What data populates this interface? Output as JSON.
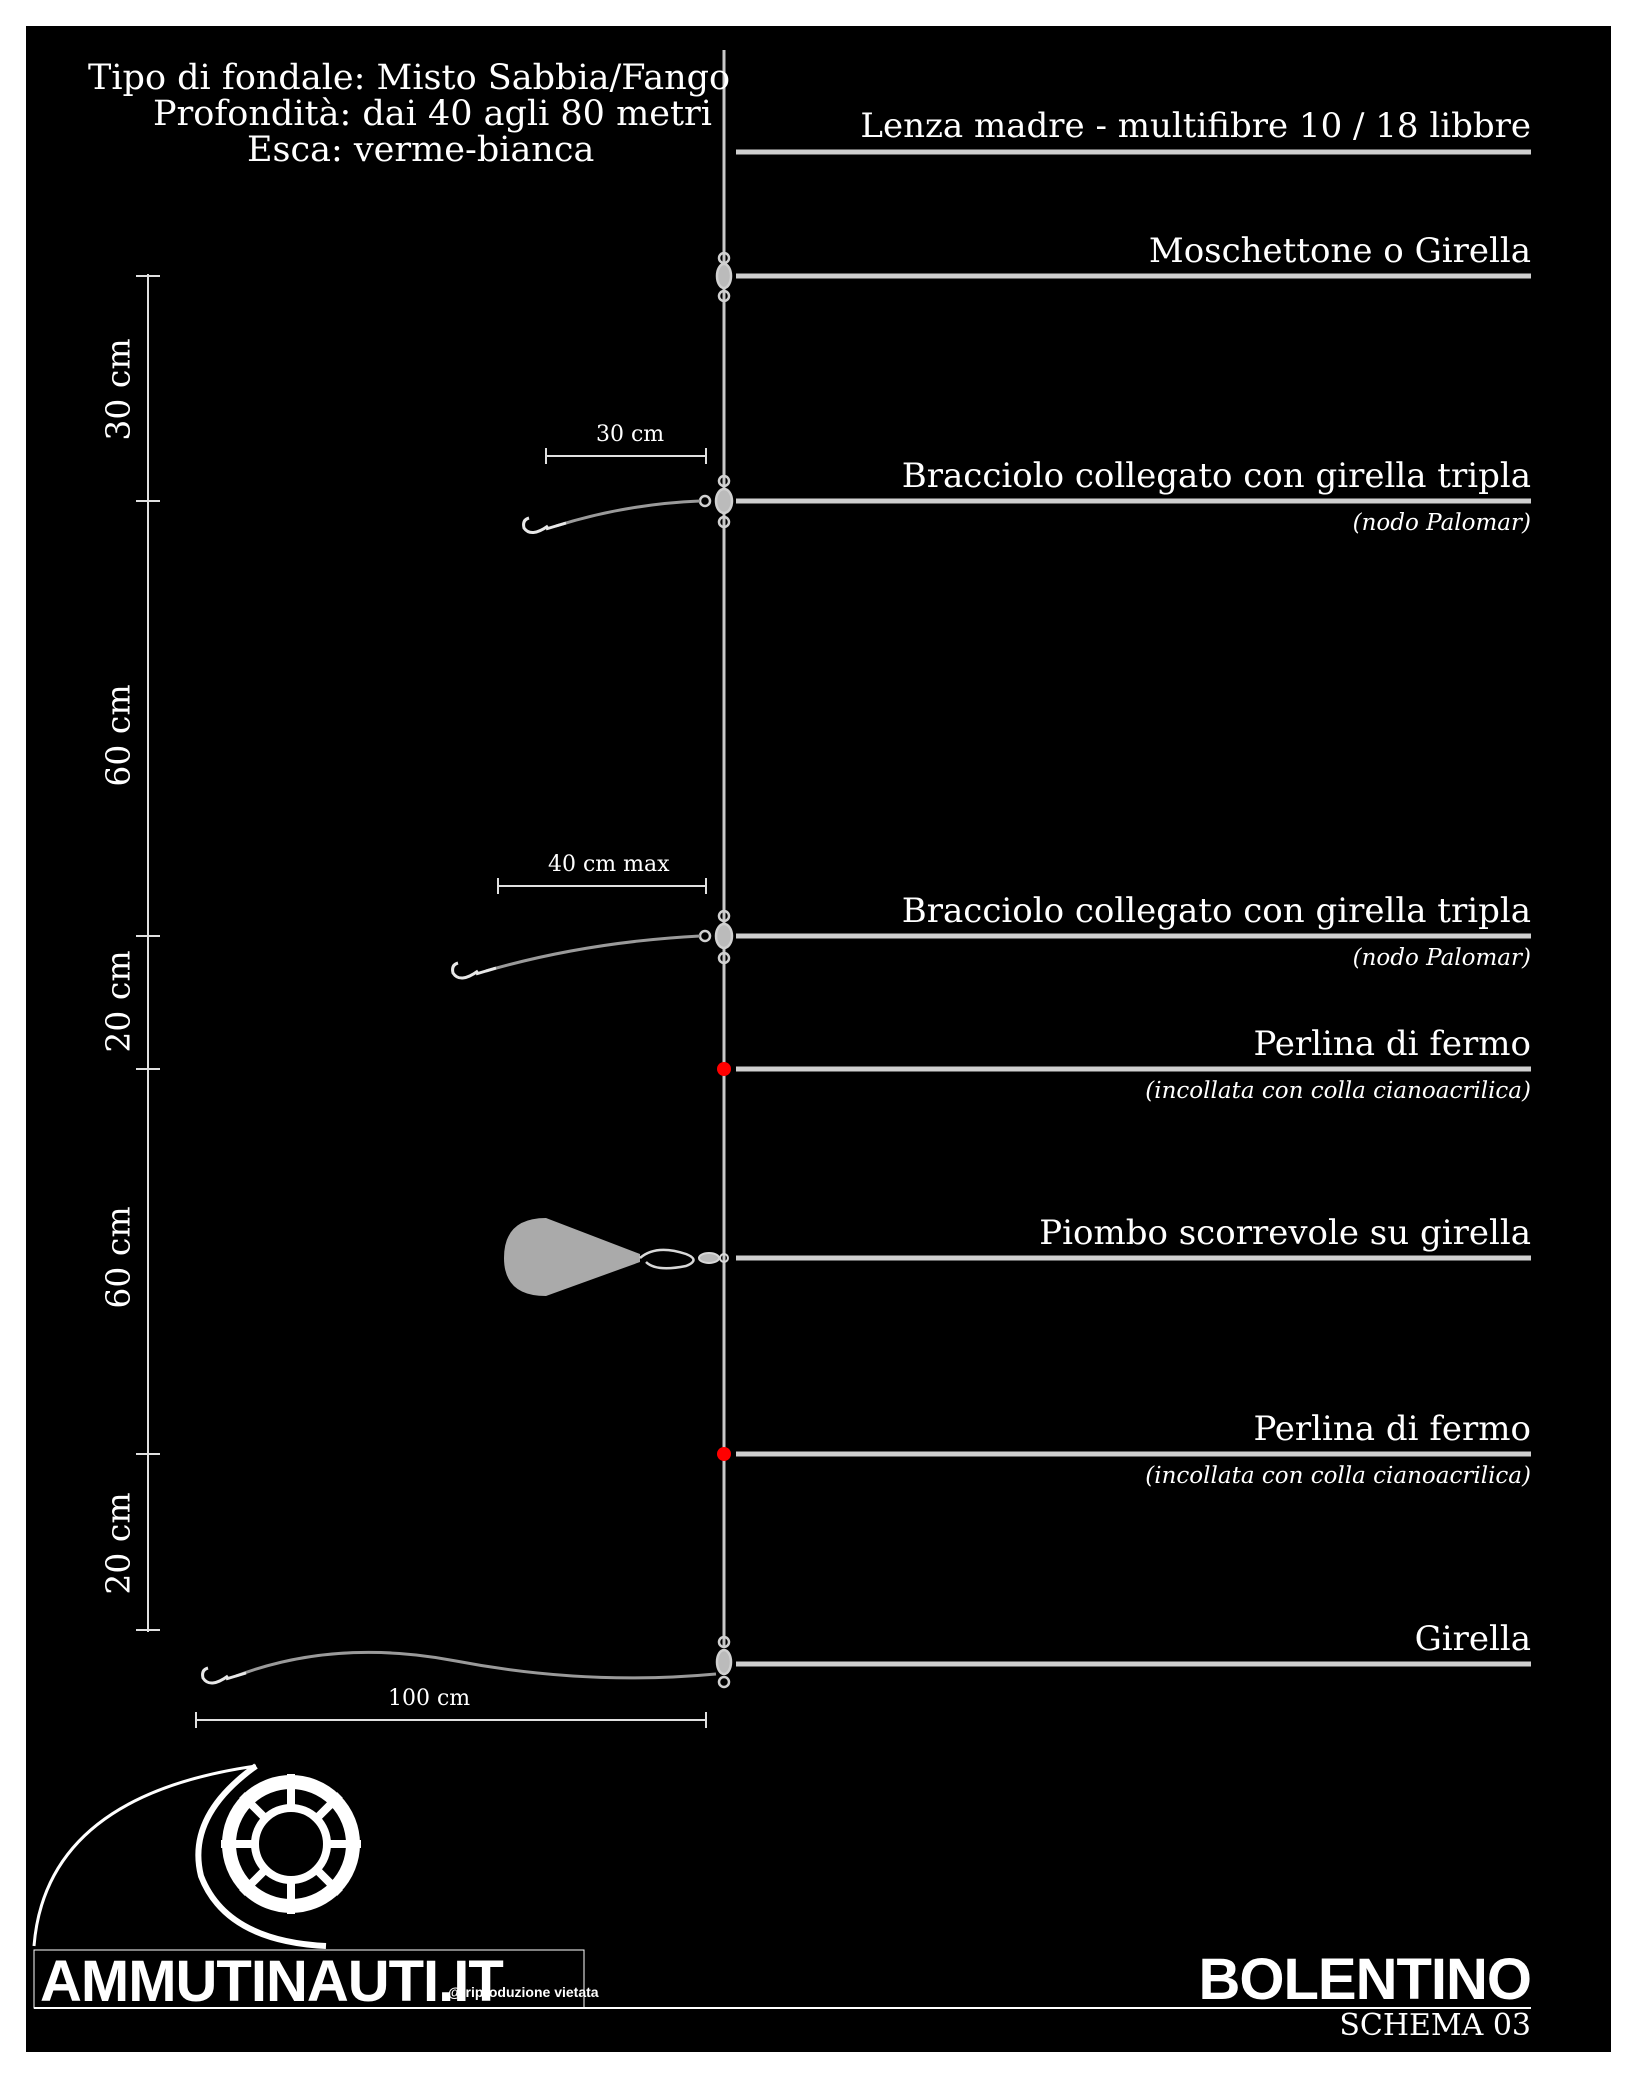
{
  "header": {
    "fondale": "Tipo di fondale: Misto Sabbia/Fango",
    "profondita": "Profondità: dai 40 agli 80 metri",
    "esca": "Esca: verme-bianca"
  },
  "labels": {
    "lenza_madre": "Lenza madre - multifibre 10 / 18 libbre",
    "moschettone": "Moschettone o Girella",
    "bracciolo_1": "Bracciolo collegato con girella tripla",
    "bracciolo_1_note": "(nodo Palomar)",
    "bracciolo_2": "Bracciolo collegato con girella tripla",
    "bracciolo_2_note": "(nodo Palomar)",
    "perlina_1": "Perlina di fermo",
    "perlina_1_note": "(incollata con colla cianoacrilica)",
    "piombo": "Piombo scorrevole su girella",
    "perlina_2": "Perlina di fermo",
    "perlina_2_note": "(incollata con colla cianoacrilica)",
    "girella": "Girella"
  },
  "dimensions": {
    "vertical": [
      "30 cm",
      "60 cm",
      "20 cm",
      "60 cm",
      "20 cm"
    ],
    "bracciolo_1_length": "30 cm",
    "bracciolo_2_length": "40 cm max",
    "terminale_length": "100 cm"
  },
  "footer": {
    "brand": "AMMUTINAUTI.IT",
    "copyright": "@ riproduzione vietata",
    "title": "BOLENTINO",
    "schema": "SCHEMA 03"
  },
  "colors": {
    "background": "#000000",
    "line": "#cccccc",
    "bead": "#ff0000",
    "lead": "#aaaaaa"
  }
}
